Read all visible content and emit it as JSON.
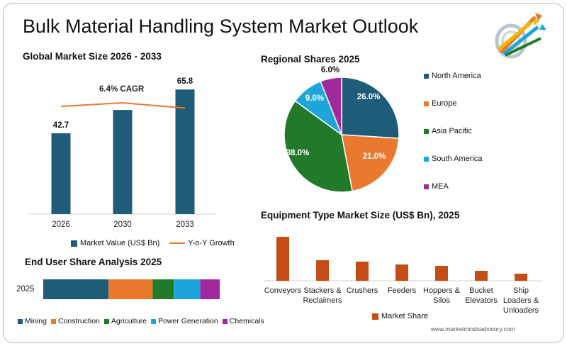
{
  "title": "Bulk Material Handling System Market Outlook",
  "footer": "www.marketmindsadvisory.com",
  "colors": {
    "navy": "#1f5c7a",
    "orange": "#e8792f",
    "green": "#217a2a",
    "sky": "#1ea6dc",
    "purple": "#a0299e",
    "rust": "#c34d15"
  },
  "chart_data": [
    {
      "type": "bar",
      "title": "Global Market Size 2026 - 2033",
      "categories": [
        "2026",
        "2030",
        "2033"
      ],
      "series": [
        {
          "name": "Market Value (US$ Bn)",
          "values": [
            42.7,
            55.0,
            65.8
          ],
          "labels": [
            "42.7",
            "",
            "65.8"
          ]
        },
        {
          "name": "Y-o-Y Growth",
          "type": "line",
          "values": [
            0.8,
            1.0,
            0.7
          ]
        }
      ],
      "annotation": "6.4% CAGR",
      "ylim": [
        0,
        70
      ]
    },
    {
      "type": "pie",
      "title": "Regional Shares 2025",
      "slices": [
        {
          "label": "North America",
          "value": 26.0,
          "text": "26.0%",
          "color": "#1f5c7a"
        },
        {
          "label": "Europe",
          "value": 21.0,
          "text": "21.0%",
          "color": "#e8792f"
        },
        {
          "label": "Asia Pacific",
          "value": 38.0,
          "text": "38.0%",
          "color": "#217a2a"
        },
        {
          "label": "South America",
          "value": 9.0,
          "text": "9.0%",
          "color": "#1ea6dc"
        },
        {
          "label": "MEA",
          "value": 6.0,
          "text": "6.0%",
          "color": "#a0299e"
        }
      ],
      "legend": "right"
    },
    {
      "type": "bar",
      "orientation": "horizontal-stacked",
      "title": "End User Share Analysis 2025",
      "categories": [
        "2025"
      ],
      "series": [
        {
          "name": "Mining",
          "values": [
            37
          ],
          "color": "#1f5c7a"
        },
        {
          "name": "Construction",
          "values": [
            25
          ],
          "color": "#e8792f"
        },
        {
          "name": "Agriculture",
          "values": [
            12
          ],
          "color": "#217a2a"
        },
        {
          "name": "Power Generation",
          "values": [
            15
          ],
          "color": "#1ea6dc"
        },
        {
          "name": "Chemicals",
          "values": [
            11
          ],
          "color": "#a0299e"
        }
      ],
      "legend": "bottom"
    },
    {
      "type": "bar",
      "title": "Equipment Type Market Size (US$ Bn), 2025",
      "categories": [
        "Conveyors",
        "Stackers & Reclaimers",
        "Crushers",
        "Feeders",
        "Hoppers & Silos",
        "Bucket Elevators",
        "Ship Loaders & Unloaders"
      ],
      "tick_lines": [
        [
          "Conveyors"
        ],
        [
          "Stackers &",
          "Reclaimers"
        ],
        [
          "Crushers"
        ],
        [
          "Feeders"
        ],
        [
          "Hoppers &",
          "Silos"
        ],
        [
          "Bucket",
          "Elevators"
        ],
        [
          "Ship",
          "Loaders &",
          "Unloaders"
        ]
      ],
      "series": [
        {
          "name": "Market Share",
          "values": [
            62,
            29,
            27,
            23,
            21,
            14,
            10
          ],
          "color": "#c34d15"
        }
      ],
      "legend": "bottom"
    }
  ]
}
